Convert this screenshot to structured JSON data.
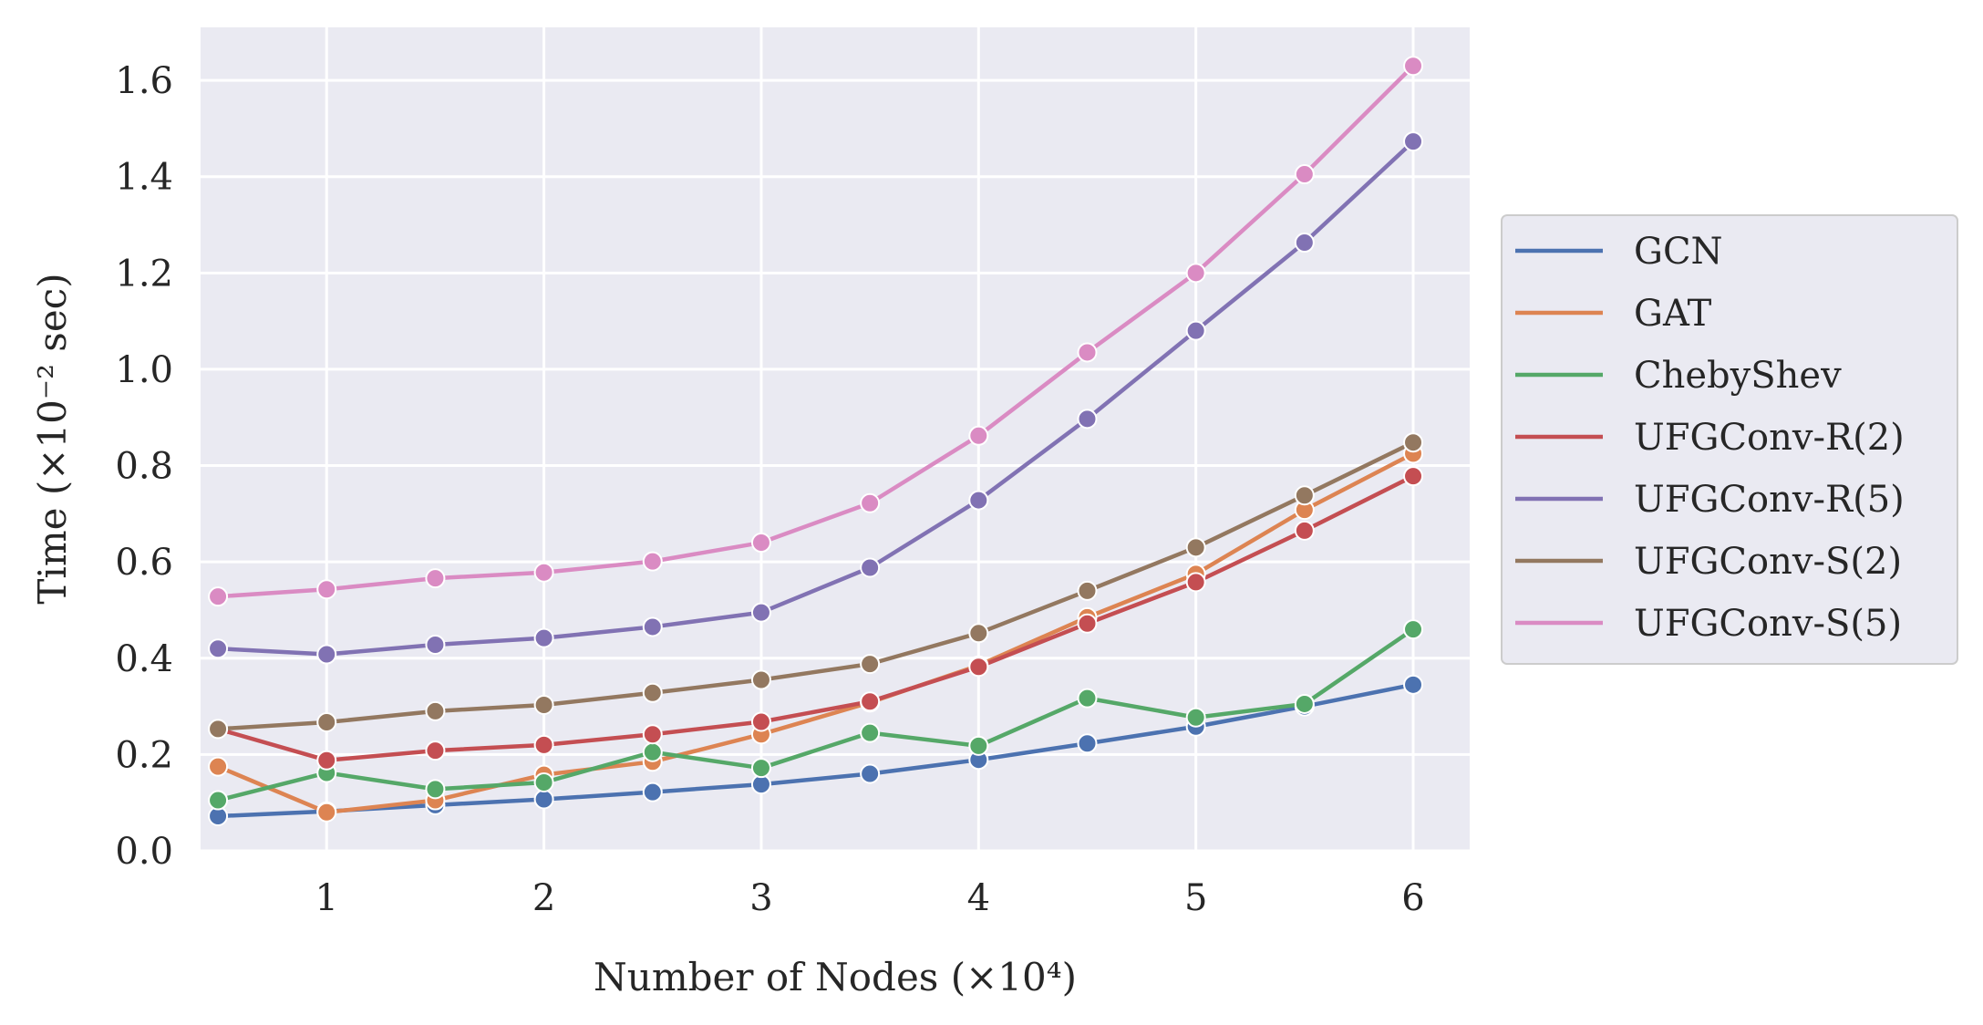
{
  "chart_data": {
    "type": "line",
    "title": "",
    "xlabel": "Number of Nodes (×10⁴)",
    "ylabel": "Time (×10⁻² sec)",
    "xlim": [
      0.42,
      6.26
    ],
    "ylim": [
      0.0,
      1.71
    ],
    "xticks": [
      1,
      2,
      3,
      4,
      5,
      6
    ],
    "xtick_labels": [
      "1",
      "2",
      "3",
      "4",
      "5",
      "6"
    ],
    "yticks": [
      0.0,
      0.2,
      0.4,
      0.6,
      0.8,
      1.0,
      1.2,
      1.4,
      1.6
    ],
    "ytick_labels": [
      "0.0",
      "0.2",
      "0.4",
      "0.6",
      "0.8",
      "1.0",
      "1.2",
      "1.4",
      "1.6"
    ],
    "grid": true,
    "legend_position": "center-right-outside",
    "x": [
      0.5,
      1.0,
      1.5,
      2.0,
      2.5,
      3.0,
      3.5,
      4.0,
      4.5,
      5.0,
      5.5,
      6.0
    ],
    "series": [
      {
        "name": "GCN",
        "color": "#4c72b0",
        "values": [
          0.072,
          0.082,
          0.095,
          0.107,
          0.122,
          0.138,
          0.16,
          0.189,
          0.223,
          0.258,
          0.3,
          0.345
        ]
      },
      {
        "name": "GAT",
        "color": "#dd8452",
        "values": [
          0.175,
          0.08,
          0.105,
          0.158,
          0.185,
          0.242,
          0.308,
          0.385,
          0.485,
          0.575,
          0.708,
          0.825
        ]
      },
      {
        "name": "ChebyShev",
        "color": "#55a868",
        "values": [
          0.105,
          0.162,
          0.128,
          0.142,
          0.205,
          0.172,
          0.245,
          0.218,
          0.317,
          0.277,
          0.305,
          0.46
        ]
      },
      {
        "name": "UFGConv-R(2)",
        "color": "#c44e52",
        "values": [
          0.253,
          0.188,
          0.208,
          0.22,
          0.242,
          0.268,
          0.31,
          0.382,
          0.472,
          0.558,
          0.665,
          0.778
        ]
      },
      {
        "name": "UFGConv-R(5)",
        "color": "#8172b3",
        "values": [
          0.42,
          0.408,
          0.428,
          0.442,
          0.465,
          0.495,
          0.588,
          0.728,
          0.897,
          1.08,
          1.263,
          1.473
        ]
      },
      {
        "name": "UFGConv-S(2)",
        "color": "#937860",
        "values": [
          0.253,
          0.267,
          0.29,
          0.303,
          0.328,
          0.355,
          0.388,
          0.452,
          0.54,
          0.63,
          0.738,
          0.848
        ]
      },
      {
        "name": "UFGConv-S(5)",
        "color": "#da8bc3",
        "values": [
          0.528,
          0.543,
          0.566,
          0.578,
          0.601,
          0.64,
          0.722,
          0.862,
          1.035,
          1.2,
          1.405,
          1.63
        ]
      }
    ]
  }
}
